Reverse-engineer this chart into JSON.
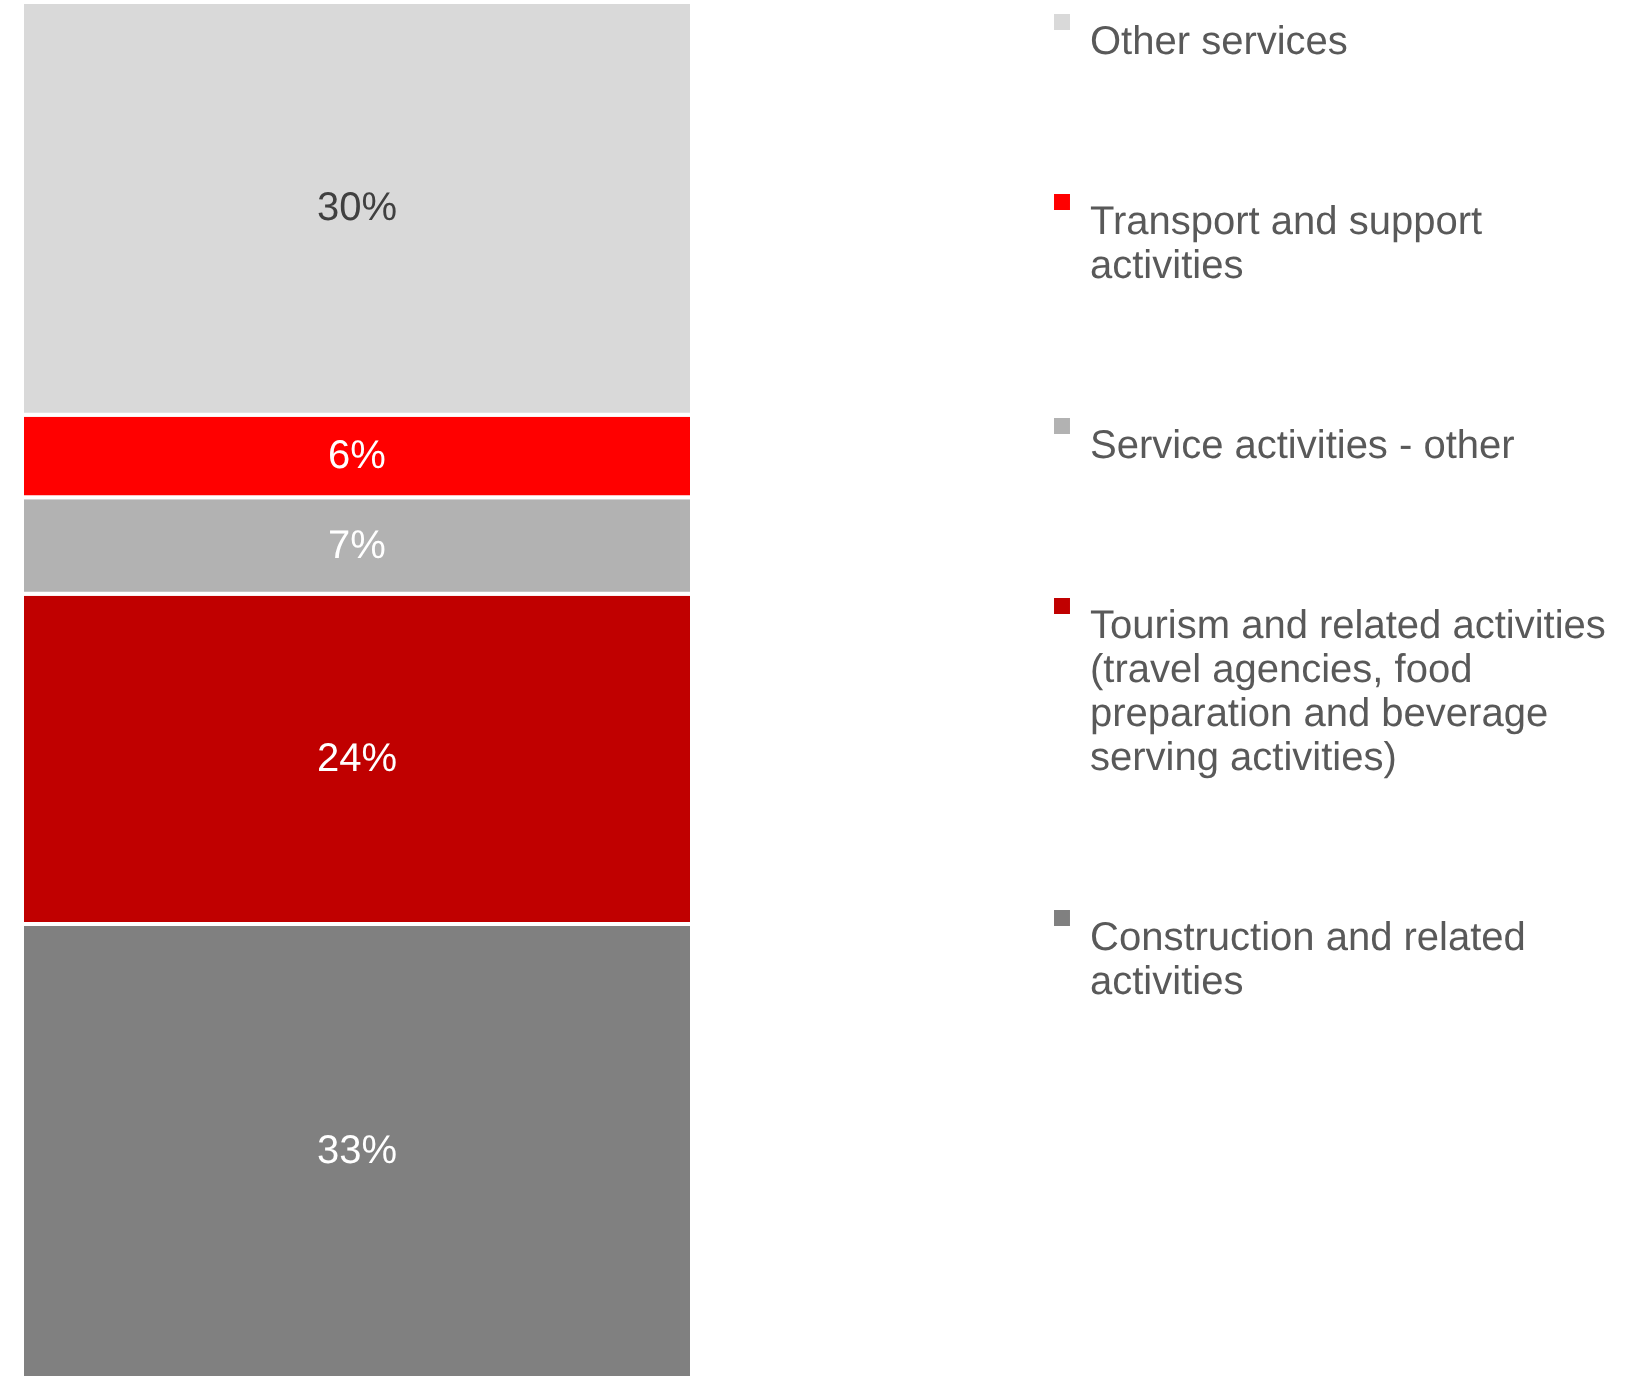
{
  "chart_data": {
    "type": "bar",
    "stacked": true,
    "categories": [
      null
    ],
    "legend": "right",
    "series": [
      {
        "name": "Construction and related activities",
        "color": "#808080",
        "values": [
          33
        ],
        "value_labels": [
          "33%"
        ]
      },
      {
        "name": "Tourism and related activities (travel agencies, food preparation and beverage serving activities)",
        "color": "#c00000",
        "values": [
          24
        ],
        "value_labels": [
          "24%"
        ]
      },
      {
        "name": "Service activities - other",
        "color": "#b2b2b2",
        "values": [
          7
        ],
        "value_labels": [
          "7%"
        ]
      },
      {
        "name": "Transport and support activities",
        "color": "#ff0000",
        "values": [
          6
        ],
        "value_labels": [
          "6%"
        ]
      },
      {
        "name": "Other services",
        "color": "#d9d9d9",
        "values": [
          30
        ],
        "value_labels": [
          "30%"
        ]
      }
    ]
  }
}
